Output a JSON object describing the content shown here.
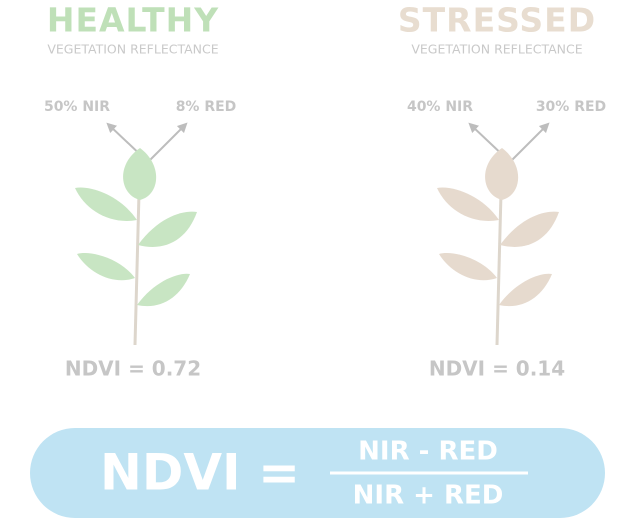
{
  "panels": [
    {
      "title": "HEALTHY",
      "subtitle": "VEGETATION REFLECTANCE",
      "nir": "50% NIR",
      "red": "8% RED",
      "ndvi": "NDVI = 0.72"
    },
    {
      "title": "STRESSED",
      "subtitle": "VEGETATION REFLECTANCE",
      "nir": "40% NIR",
      "red": "30% RED",
      "ndvi": "NDVI = 0.14"
    }
  ],
  "formula": {
    "left": "NDVI =",
    "numerator": "NIR - RED",
    "denominator": "NIR + RED"
  }
}
